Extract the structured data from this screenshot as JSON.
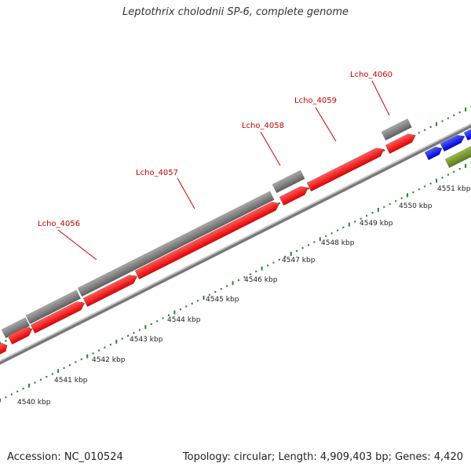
{
  "title": "Leptothrix cholodnii SP-6, complete genome",
  "footer": {
    "accession": "Accession: NC_010524",
    "summary": "Topology: circular; Length: 4,909,403 bp; Genes: 4,420"
  },
  "colors": {
    "forward_cds": "#ff0000",
    "other_cds": "#0000ff",
    "gene": "#7f7f7f",
    "misc_feature": "#6b8e23",
    "label": "#cc0000",
    "ticks": "#228b22",
    "backbone": "#999999"
  },
  "scale": {
    "unit": "kbp",
    "labels": [
      "4540 kbp",
      "4541 kbp",
      "4542 kbp",
      "4543 kbp",
      "4544 kbp",
      "4545 kbp",
      "4546 kbp",
      "4547 kbp",
      "4548 kbp",
      "4549 kbp",
      "4550 kbp",
      "4551 kbp"
    ]
  },
  "gene_labels": [
    "Lcho_4056",
    "Lcho_4057",
    "Lcho_4058",
    "Lcho_4059",
    "Lcho_4060"
  ]
}
